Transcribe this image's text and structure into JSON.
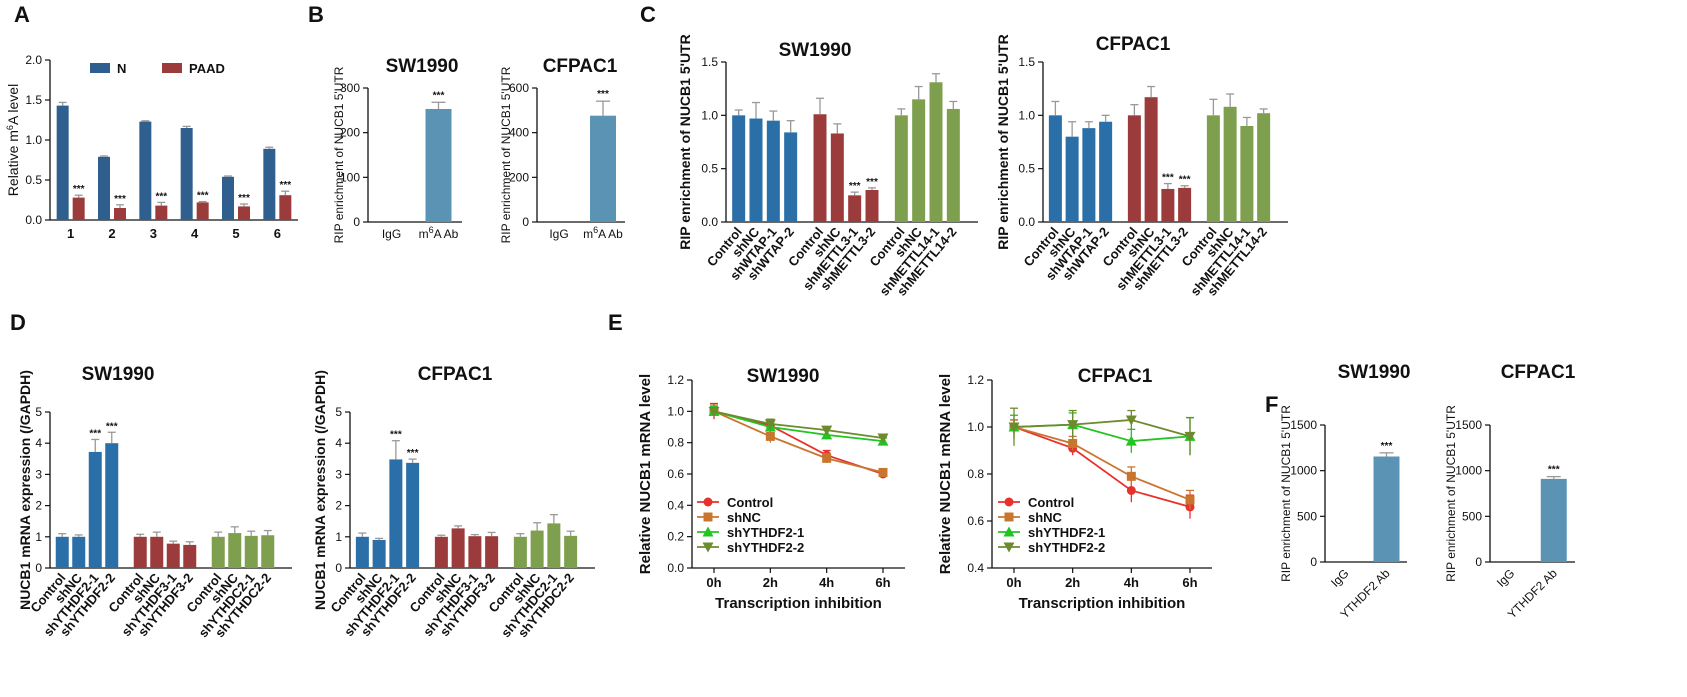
{
  "colors": {
    "blue": "#2a6fa8",
    "darkred": "#9c3b3b",
    "green": "#7ea04e",
    "steel": "#5b93b5",
    "navy": "#2f5f8f",
    "red": "#e8312a",
    "orange": "#c8752f",
    "lime": "#22c422",
    "olive": "#6e8a2e",
    "err": "#999999"
  },
  "chart_data": [
    {
      "id": "A",
      "panel_label": "A",
      "type": "bar",
      "title": "",
      "ylabel": "Relative m6A level",
      "ylim": [
        0,
        2.0
      ],
      "yticks": [
        "0.0",
        "0.5",
        "1.0",
        "1.5",
        "2.0"
      ],
      "categories": [
        "1",
        "2",
        "3",
        "4",
        "5",
        "6"
      ],
      "legend": "top",
      "sig": "***",
      "series": [
        {
          "name": "N",
          "color": "#2f5f8f",
          "values": [
            1.43,
            0.79,
            1.23,
            1.15,
            0.54,
            0.89
          ],
          "errors": [
            0.04,
            0.01,
            0.01,
            0.02,
            0.01,
            0.02
          ],
          "sig": [
            "",
            "",
            "",
            "",
            "",
            ""
          ]
        },
        {
          "name": "PAAD",
          "color": "#9c3b3b",
          "values": [
            0.28,
            0.15,
            0.18,
            0.22,
            0.17,
            0.31
          ],
          "errors": [
            0.03,
            0.04,
            0.04,
            0.01,
            0.03,
            0.05
          ],
          "sig": [
            "***",
            "***",
            "***",
            "***",
            "***",
            "***"
          ]
        }
      ]
    },
    {
      "id": "B1",
      "panel_label": "B",
      "type": "bar",
      "title": "SW1990",
      "ylabel": "RIP enrichment of NUCB1 5'UTR",
      "ylim": [
        0,
        300
      ],
      "yticks": [
        "0",
        "100",
        "200",
        "300"
      ],
      "categories": [
        "IgG",
        "m6A Ab"
      ],
      "colors": [
        "#5b93b5",
        "#5b93b5"
      ],
      "values": [
        0,
        253
      ],
      "errors": [
        0,
        15
      ],
      "sig": [
        "",
        "***"
      ]
    },
    {
      "id": "B2",
      "panel_label": "",
      "type": "bar",
      "title": "CFPAC1",
      "ylabel": "RIP enrichment of NUCB1 5'UTR",
      "ylim": [
        0,
        600
      ],
      "yticks": [
        "0",
        "200",
        "400",
        "600"
      ],
      "categories": [
        "IgG",
        "m6A Ab"
      ],
      "colors": [
        "#5b93b5",
        "#5b93b5"
      ],
      "values": [
        0,
        476
      ],
      "errors": [
        0,
        65
      ],
      "sig": [
        "",
        "***"
      ]
    },
    {
      "id": "C1",
      "panel_label": "C",
      "type": "bar",
      "title": "SW1990",
      "ylabel": "RIP enrichment of NUCB1 5'UTR",
      "ylim": [
        0,
        1.5
      ],
      "yticks": [
        "0.0",
        "0.5",
        "1.0",
        "1.5"
      ],
      "groups": [
        [
          "Control",
          "shNC",
          "shWTAP-1",
          "shWTAP-2"
        ],
        [
          "Control",
          "shNC",
          "shMETTL3-1",
          "shMETTL3-2"
        ],
        [
          "Control",
          "shNC",
          "shMETTL14-1",
          "shMETTL14-2"
        ]
      ],
      "group_colors": [
        "#2a6fa8",
        "#9c3b3b",
        "#7ea04e"
      ],
      "values": [
        [
          1.0,
          0.97,
          0.95,
          0.84
        ],
        [
          1.01,
          0.83,
          0.25,
          0.3
        ],
        [
          1.0,
          1.15,
          1.31,
          1.06
        ]
      ],
      "errors": [
        [
          0.05,
          0.15,
          0.09,
          0.11
        ],
        [
          0.15,
          0.09,
          0.03,
          0.02
        ],
        [
          0.06,
          0.12,
          0.08,
          0.07
        ]
      ],
      "sig": [
        [
          "",
          "",
          "",
          ""
        ],
        [
          "",
          "",
          "***",
          "***"
        ],
        [
          "",
          "",
          "",
          ""
        ]
      ]
    },
    {
      "id": "C2",
      "panel_label": "",
      "type": "bar",
      "title": "CFPAC1",
      "ylabel": "RIP enrichment of NUCB1 5'UTR",
      "ylim": [
        0,
        1.5
      ],
      "yticks": [
        "0.0",
        "0.5",
        "1.0",
        "1.5"
      ],
      "groups": [
        [
          "Control",
          "shNC",
          "shWTAP-1",
          "shWTAP-2"
        ],
        [
          "Control",
          "shNC",
          "shMETTL3-1",
          "shMETTL3-2"
        ],
        [
          "Control",
          "shNC",
          "shMETTL14-1",
          "shMETTL14-2"
        ]
      ],
      "group_colors": [
        "#2a6fa8",
        "#9c3b3b",
        "#7ea04e"
      ],
      "values": [
        [
          1.0,
          0.8,
          0.88,
          0.94
        ],
        [
          1.0,
          1.17,
          0.31,
          0.32
        ],
        [
          1.0,
          1.08,
          0.9,
          1.02
        ]
      ],
      "errors": [
        [
          0.13,
          0.14,
          0.06,
          0.06
        ],
        [
          0.1,
          0.1,
          0.05,
          0.02
        ],
        [
          0.15,
          0.12,
          0.08,
          0.04
        ]
      ],
      "sig": [
        [
          "",
          "",
          "",
          ""
        ],
        [
          "",
          "",
          "***",
          "***"
        ],
        [
          "",
          "",
          "",
          ""
        ]
      ]
    },
    {
      "id": "D1",
      "panel_label": "D",
      "type": "bar",
      "title": "SW1990",
      "ylabel": "NUCB1 mRNA expression (/GAPDH)",
      "ylim": [
        0,
        5
      ],
      "yticks": [
        "0",
        "1",
        "2",
        "3",
        "4",
        "5"
      ],
      "groups": [
        [
          "Control",
          "shNC",
          "shYTHDF2-1",
          "shYTHDF2-2"
        ],
        [
          "Control",
          "shNC",
          "shYTHDF3-1",
          "shYTHDF3-2"
        ],
        [
          "Control",
          "shNC",
          "shYTHDC2-1",
          "shYTHDC2-2"
        ]
      ],
      "group_colors": [
        "#2a6fa8",
        "#9c3b3b",
        "#7ea04e"
      ],
      "values": [
        [
          1.0,
          1.0,
          3.72,
          4.0
        ],
        [
          1.0,
          1.0,
          0.78,
          0.74
        ],
        [
          1.0,
          1.12,
          1.03,
          1.05
        ]
      ],
      "errors": [
        [
          0.1,
          0.06,
          0.4,
          0.35
        ],
        [
          0.08,
          0.15,
          0.08,
          0.1
        ],
        [
          0.15,
          0.2,
          0.15,
          0.15
        ]
      ],
      "sig": [
        [
          "",
          "",
          "***",
          "***"
        ],
        [
          "",
          "",
          "",
          ""
        ],
        [
          "",
          "",
          "",
          ""
        ]
      ]
    },
    {
      "id": "D2",
      "panel_label": "",
      "type": "bar",
      "title": "CFPAC1",
      "ylabel": "NUCB1 mRNA expression (/GAPDH)",
      "ylim": [
        0,
        5
      ],
      "yticks": [
        "0",
        "1",
        "2",
        "3",
        "4",
        "5"
      ],
      "groups": [
        [
          "Control",
          "shNC",
          "shYTHDF2-1",
          "shYTHDF2-2"
        ],
        [
          "Control",
          "shNC",
          "shYTHDF3-1",
          "shYTHDF3-2"
        ],
        [
          "Control",
          "shNC",
          "shYTHDC2-1",
          "shYTHDC2-2"
        ]
      ],
      "group_colors": [
        "#2a6fa8",
        "#9c3b3b",
        "#7ea04e"
      ],
      "values": [
        [
          1.0,
          0.9,
          3.48,
          3.37
        ],
        [
          1.0,
          1.27,
          1.02,
          1.02
        ],
        [
          1.0,
          1.2,
          1.43,
          1.03
        ]
      ],
      "errors": [
        [
          0.12,
          0.05,
          0.6,
          0.12
        ],
        [
          0.05,
          0.08,
          0.05,
          0.12
        ],
        [
          0.1,
          0.25,
          0.28,
          0.15
        ]
      ],
      "sig": [
        [
          "",
          "",
          "***",
          "***"
        ],
        [
          "",
          "",
          "",
          ""
        ],
        [
          "",
          "",
          "",
          ""
        ]
      ]
    },
    {
      "id": "E1",
      "panel_label": "E",
      "type": "line",
      "title": "SW1990",
      "ylabel": "Relative NUCB1 mRNA level",
      "xlabel": "Transcription inhibition",
      "ylim": [
        0,
        1.2
      ],
      "yticks": [
        "0.0",
        "0.2",
        "0.4",
        "0.6",
        "0.8",
        "1.0",
        "1.2"
      ],
      "x": [
        "0h",
        "2h",
        "4h",
        "6h"
      ],
      "legend": "lower-left",
      "series": [
        {
          "name": "Control",
          "color": "#e8312a",
          "marker": "circle",
          "values": [
            1.0,
            0.91,
            0.72,
            0.6
          ],
          "errors": [
            0.05,
            0.04,
            0.03,
            0.02
          ]
        },
        {
          "name": "shNC",
          "color": "#c8752f",
          "marker": "square",
          "values": [
            1.0,
            0.84,
            0.7,
            0.61
          ],
          "errors": [
            0.04,
            0.04,
            0.03,
            0.02
          ]
        },
        {
          "name": "shYTHDF2-1",
          "color": "#22c422",
          "marker": "triangle-up",
          "values": [
            1.0,
            0.9,
            0.85,
            0.81
          ],
          "errors": [
            0.03,
            0.03,
            0.03,
            0.02
          ]
        },
        {
          "name": "shYTHDF2-2",
          "color": "#6e8a2e",
          "marker": "triangle-down",
          "values": [
            1.0,
            0.92,
            0.88,
            0.83
          ],
          "errors": [
            0.02,
            0.03,
            0.02,
            0.01
          ]
        }
      ]
    },
    {
      "id": "E2",
      "panel_label": "",
      "type": "line",
      "title": "CFPAC1",
      "ylabel": "Relative NUCB1 mRNA level",
      "xlabel": "Transcription inhibition",
      "ylim": [
        0.4,
        1.2
      ],
      "yticks": [
        "0.4",
        "0.6",
        "0.8",
        "1.0",
        "1.2"
      ],
      "x": [
        "0h",
        "2h",
        "4h",
        "6h"
      ],
      "legend": "lower-left",
      "series": [
        {
          "name": "Control",
          "color": "#e8312a",
          "marker": "circle",
          "values": [
            1.0,
            0.91,
            0.73,
            0.66
          ],
          "errors": [
            0.03,
            0.03,
            0.05,
            0.05
          ]
        },
        {
          "name": "shNC",
          "color": "#c8752f",
          "marker": "square",
          "values": [
            1.0,
            0.93,
            0.79,
            0.69
          ],
          "errors": [
            0.03,
            0.03,
            0.04,
            0.04
          ]
        },
        {
          "name": "shYTHDF2-1",
          "color": "#22c422",
          "marker": "triangle-up",
          "values": [
            1.0,
            1.01,
            0.94,
            0.96
          ],
          "errors": [
            0.05,
            0.05,
            0.05,
            0.08
          ]
        },
        {
          "name": "shYTHDF2-2",
          "color": "#6e8a2e",
          "marker": "triangle-down",
          "values": [
            1.0,
            1.01,
            1.03,
            0.96
          ],
          "errors": [
            0.08,
            0.06,
            0.04,
            0.08
          ]
        }
      ]
    },
    {
      "id": "F1",
      "panel_label": "F",
      "type": "bar",
      "title": "SW1990",
      "ylabel": "RIP enrichment of NUCB1 5'UTR",
      "ylim": [
        0,
        1500
      ],
      "yticks": [
        "0",
        "500",
        "1000",
        "1500"
      ],
      "categories": [
        "IgG",
        "YTHDF2 Ab"
      ],
      "colors": [
        "#5b93b5",
        "#5b93b5"
      ],
      "values": [
        0,
        1155
      ],
      "errors": [
        0,
        40
      ],
      "sig": [
        "",
        "***"
      ]
    },
    {
      "id": "F2",
      "panel_label": "",
      "type": "bar",
      "title": "CFPAC1",
      "ylabel": "RIP enrichment of NUCB1 5'UTR",
      "ylim": [
        0,
        1500
      ],
      "yticks": [
        "0",
        "500",
        "1000",
        "1500"
      ],
      "categories": [
        "IgG",
        "YTHDF2 Ab"
      ],
      "colors": [
        "#5b93b5",
        "#5b93b5"
      ],
      "values": [
        0,
        910
      ],
      "errors": [
        0,
        25
      ],
      "sig": [
        "",
        "***"
      ]
    }
  ]
}
